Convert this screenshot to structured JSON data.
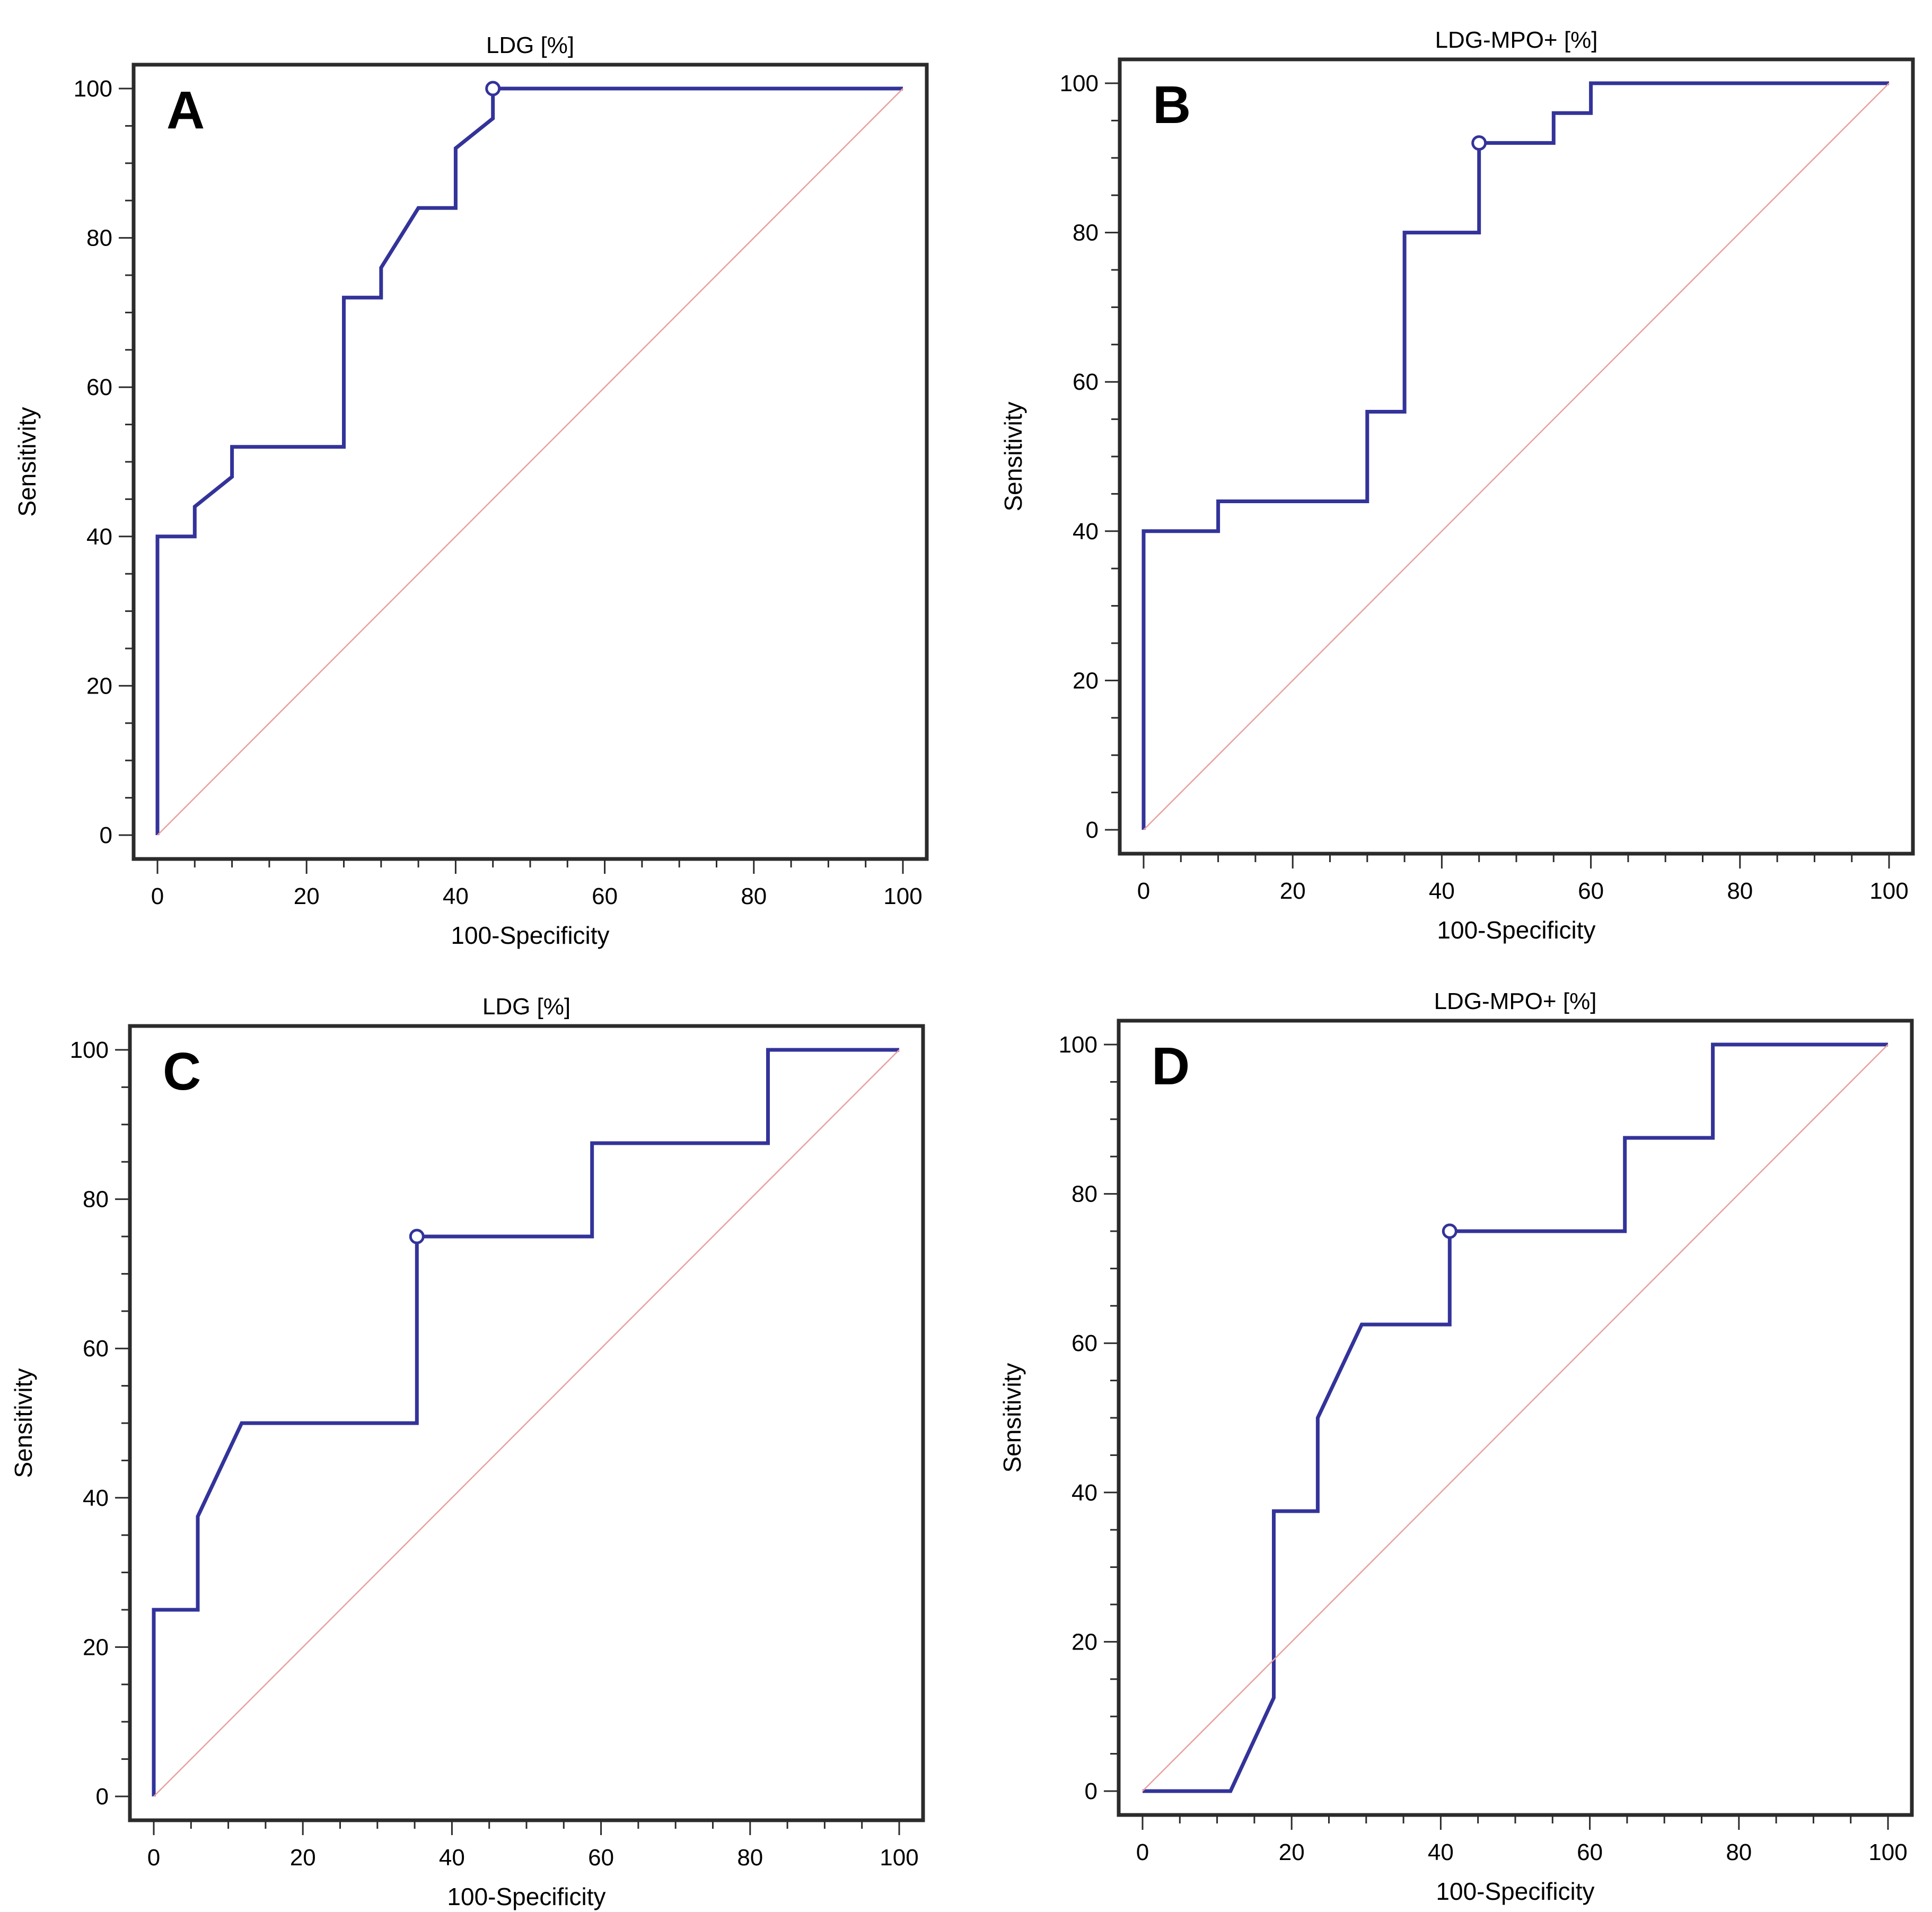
{
  "chart_data": [
    {
      "id": "A",
      "type": "line",
      "panel_label": "A",
      "title": "LDG [%]",
      "xlabel": "100-Specificity",
      "ylabel": "Sensitivity",
      "xlim": [
        0,
        100
      ],
      "ylim": [
        0,
        100
      ],
      "x_ticks": [
        "0",
        "20",
        "40",
        "60",
        "80",
        "100"
      ],
      "y_ticks": [
        "0",
        "20",
        "40",
        "60",
        "80",
        "100"
      ],
      "series": [
        {
          "name": "ROC curve",
          "points": [
            [
              0,
              0
            ],
            [
              0,
              40
            ],
            [
              5,
              40
            ],
            [
              5,
              44
            ],
            [
              10,
              48
            ],
            [
              10,
              52
            ],
            [
              25,
              52
            ],
            [
              25,
              72
            ],
            [
              30,
              72
            ],
            [
              30,
              76
            ],
            [
              35,
              84
            ],
            [
              40,
              84
            ],
            [
              40,
              92
            ],
            [
              45,
              96
            ],
            [
              45,
              100
            ],
            [
              100,
              100
            ]
          ]
        },
        {
          "name": "reference",
          "points": [
            [
              0,
              0
            ],
            [
              100,
              100
            ]
          ]
        }
      ],
      "marker_point": [
        45,
        100
      ]
    },
    {
      "id": "B",
      "type": "line",
      "panel_label": "B",
      "title": "LDG-MPO+ [%]",
      "xlabel": "100-Specificity",
      "ylabel": "Sensitivity",
      "xlim": [
        0,
        100
      ],
      "ylim": [
        0,
        100
      ],
      "x_ticks": [
        "0",
        "20",
        "40",
        "60",
        "80",
        "100"
      ],
      "y_ticks": [
        "0",
        "20",
        "40",
        "60",
        "80",
        "100"
      ],
      "series": [
        {
          "name": "ROC curve",
          "points": [
            [
              0,
              0
            ],
            [
              0,
              40
            ],
            [
              10,
              40
            ],
            [
              10,
              44
            ],
            [
              30,
              44
            ],
            [
              30,
              56
            ],
            [
              35,
              56
            ],
            [
              35,
              80
            ],
            [
              45,
              80
            ],
            [
              45,
              92
            ],
            [
              55,
              92
            ],
            [
              55,
              96
            ],
            [
              60,
              96
            ],
            [
              60,
              100
            ],
            [
              100,
              100
            ]
          ]
        },
        {
          "name": "reference",
          "points": [
            [
              0,
              0
            ],
            [
              100,
              100
            ]
          ]
        }
      ],
      "marker_point": [
        45,
        92
      ]
    },
    {
      "id": "C",
      "type": "line",
      "panel_label": "C",
      "title": "LDG [%]",
      "xlabel": "100-Specificity",
      "ylabel": "Sensitivity",
      "xlim": [
        0,
        100
      ],
      "ylim": [
        0,
        100
      ],
      "x_ticks": [
        "0",
        "20",
        "40",
        "60",
        "80",
        "100"
      ],
      "y_ticks": [
        "0",
        "20",
        "40",
        "60",
        "80",
        "100"
      ],
      "series": [
        {
          "name": "ROC curve",
          "points": [
            [
              0,
              0
            ],
            [
              0,
              25
            ],
            [
              5.9,
              25
            ],
            [
              5.9,
              37.5
            ],
            [
              11.8,
              50
            ],
            [
              35.3,
              50
            ],
            [
              35.3,
              75
            ],
            [
              58.8,
              75
            ],
            [
              58.8,
              87.5
            ],
            [
              82.4,
              87.5
            ],
            [
              82.4,
              100
            ],
            [
              100,
              100
            ]
          ]
        },
        {
          "name": "reference",
          "points": [
            [
              0,
              0
            ],
            [
              100,
              100
            ]
          ]
        }
      ],
      "marker_point": [
        35.3,
        75
      ]
    },
    {
      "id": "D",
      "type": "line",
      "panel_label": "D",
      "title": "LDG-MPO+ [%]",
      "xlabel": "100-Specificity",
      "ylabel": "Sensitivity",
      "xlim": [
        0,
        100
      ],
      "ylim": [
        0,
        100
      ],
      "x_ticks": [
        "0",
        "20",
        "40",
        "60",
        "80",
        "100"
      ],
      "y_ticks": [
        "0",
        "20",
        "40",
        "60",
        "80",
        "100"
      ],
      "series": [
        {
          "name": "ROC curve",
          "points": [
            [
              0,
              0
            ],
            [
              11.8,
              0
            ],
            [
              17.6,
              12.5
            ],
            [
              17.6,
              37.5
            ],
            [
              23.5,
              37.5
            ],
            [
              23.5,
              50
            ],
            [
              29.4,
              62.5
            ],
            [
              41.2,
              62.5
            ],
            [
              41.2,
              75
            ],
            [
              64.7,
              75
            ],
            [
              64.7,
              87.5
            ],
            [
              76.5,
              87.5
            ],
            [
              76.5,
              100
            ],
            [
              100,
              100
            ]
          ]
        },
        {
          "name": "reference",
          "points": [
            [
              0,
              0
            ],
            [
              100,
              100
            ]
          ]
        }
      ],
      "marker_point": [
        41.2,
        75
      ]
    }
  ]
}
